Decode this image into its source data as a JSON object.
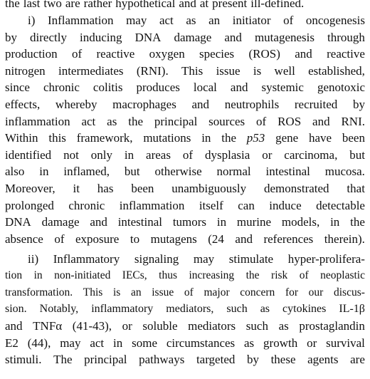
{
  "paragraphs": [
    {
      "lines": [
        "the last two are rather hypothetical and at present ill-defined."
      ]
    },
    {
      "lines": [
        "i) Inflammation may act as an initiator of oncogenesis",
        "by directly inducing DNA damage and mutagenesis through",
        "production of reactive oxygen species (ROS) and reactive",
        "nitrogen intermediates (RNI). This issue is well established,",
        "since chronic colitis produces local and systemic genotoxic",
        "effects, whereby macrophages and neutrophils recruited by",
        "inflammation act as the principal sources of ROS and RNI.",
        "Within this framework, mutations in the p53 gene have been",
        "identified not only in areas of dysplasia or carcinoma, but",
        "also in inflamed, but otherwise normal intestinal mucosa.",
        "Moreover, it has been unambiguously demonstrated that",
        "prolonged chronic inflammation itself can induce detectable",
        "DNA damage and intestinal tumors in murine models, in the",
        "absence of exposure to mutagens (24 and references therein)."
      ]
    },
    {
      "lines": [
        "ii) Inflammatory signaling may stimulate hyper-prolifera-",
        "tion in non-initiated IECs, thus increasing the risk of neoplastic",
        "transformation. This is an issue of major concern for our discus-",
        "sion. Notably, inflammatory mediators, such as cytokines IL-1β",
        "and TNFα (41-43), or soluble mediators such as prostaglandin",
        "E2 (44), may act in some circumstances as growth or survival",
        "stimuli. The principal pathways targeted by these agents are"
      ]
    }
  ]
}
